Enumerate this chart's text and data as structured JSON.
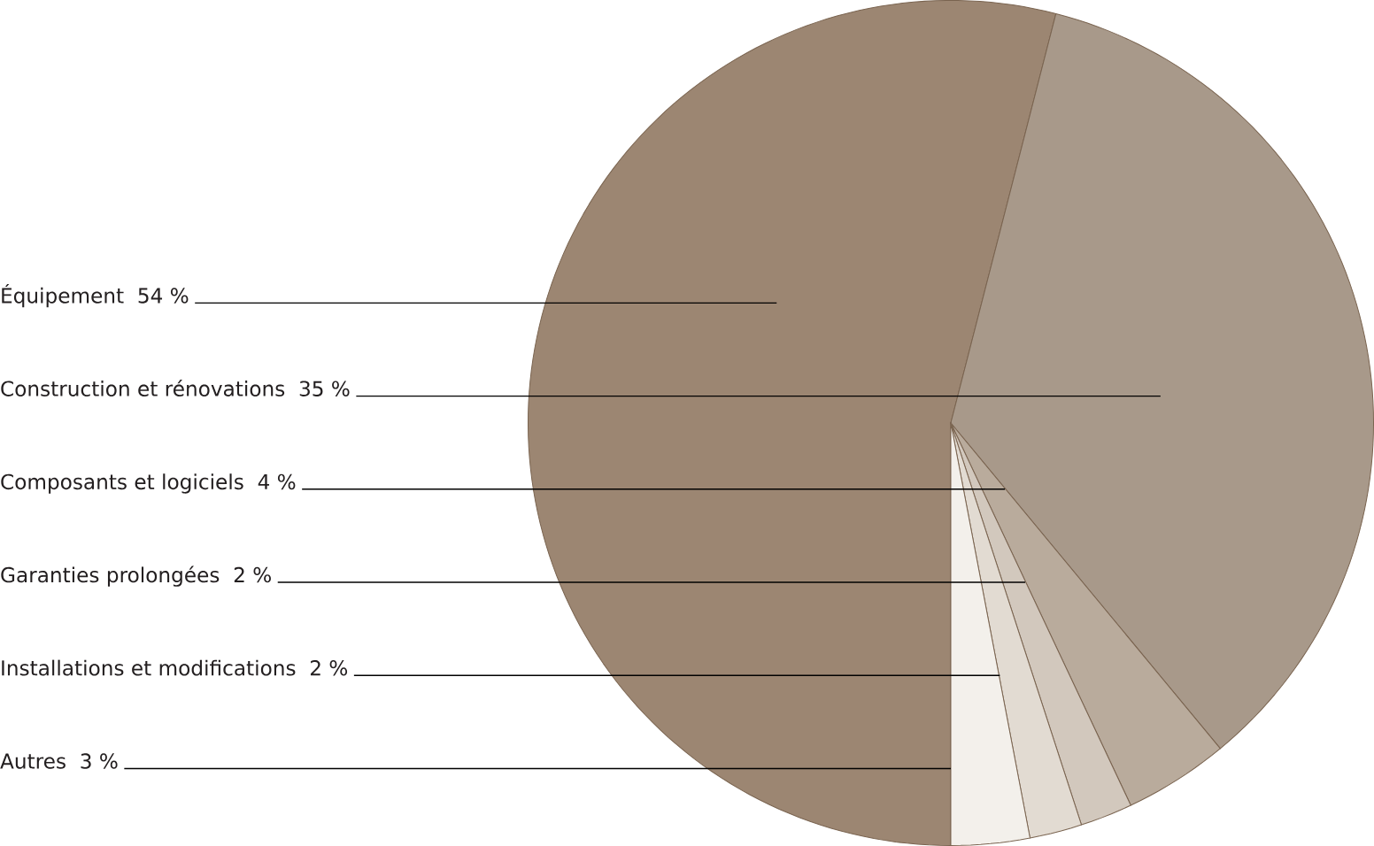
{
  "chart_data": {
    "type": "pie",
    "categories": [
      "Équipement",
      "Construction et rénovations",
      "Composants et logiciels",
      "Garanties prolongées",
      "Installations et modifications",
      "Autres"
    ],
    "values": [
      54,
      35,
      4,
      2,
      2,
      3
    ],
    "value_labels": [
      "54 %",
      "35 %",
      "4 %",
      "2 %",
      "2 %",
      "3 %"
    ],
    "colors": [
      "#9c8672",
      "#a8998a",
      "#b9ab9c",
      "#d2c8bd",
      "#e2dbd2",
      "#f3f0eb"
    ]
  }
}
